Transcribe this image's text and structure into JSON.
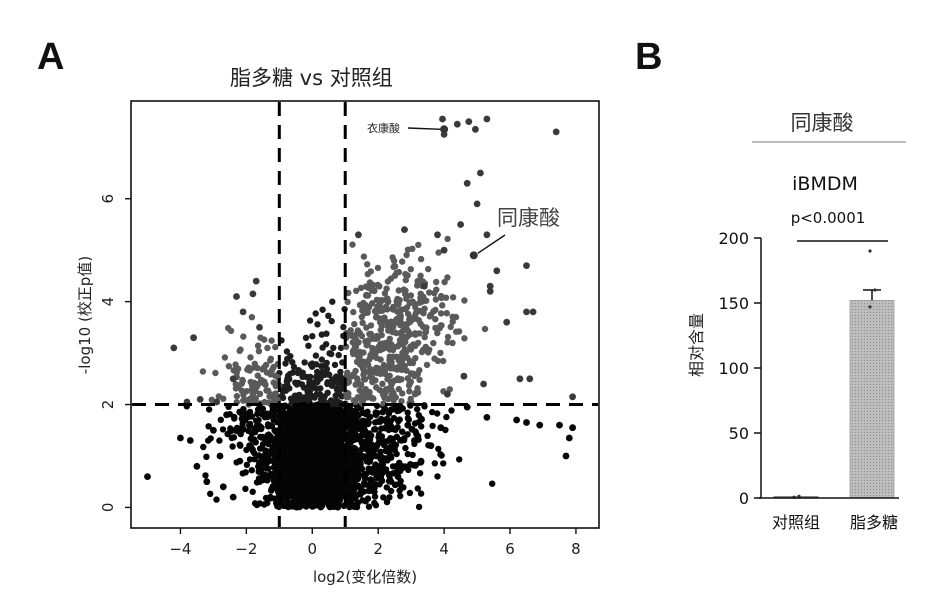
{
  "panels": {
    "a": {
      "letter": "A",
      "title": "脂多糖 vs 对照组",
      "annotation_small": "衣康酸",
      "annotation_big": "同康酸"
    },
    "b": {
      "letter": "B",
      "compound": "同康酸",
      "cell_line": "iBMDM",
      "pvalue": "p<0.0001"
    }
  },
  "chart_data": [
    {
      "type": "scatter",
      "title": "脂多糖 vs 对照组",
      "xlabel": "log2(变化倍数)",
      "ylabel": "-log10 (校正p值)",
      "xlim": [
        -5.5,
        8.7
      ],
      "ylim": [
        -0.4,
        7.9
      ],
      "xticks": [
        -4,
        -2,
        0,
        2,
        4,
        6,
        8
      ],
      "yticks": [
        0,
        2,
        4,
        6
      ],
      "thresholds": {
        "x": [
          -1,
          1
        ],
        "y": 2
      },
      "grid": false,
      "highlighted": [
        {
          "label": "衣康酸",
          "x": 4.0,
          "y": 7.35
        },
        {
          "label": "同康酸",
          "x": 4.9,
          "y": 4.9
        }
      ],
      "points": [
        [
          3.95,
          7.55
        ],
        [
          4.4,
          7.45
        ],
        [
          4.75,
          7.5
        ],
        [
          5.3,
          7.55
        ],
        [
          7.4,
          7.3
        ],
        [
          4.95,
          7.35
        ],
        [
          4.0,
          7.25
        ],
        [
          5.1,
          6.5
        ],
        [
          4.7,
          6.3
        ],
        [
          5.0,
          5.9
        ],
        [
          2.8,
          5.4
        ],
        [
          4.5,
          5.5
        ],
        [
          3.8,
          5.3
        ],
        [
          5.3,
          5.3
        ],
        [
          1.4,
          5.3
        ],
        [
          4.0,
          5.0
        ],
        [
          4.9,
          4.9
        ],
        [
          6.5,
          4.7
        ],
        [
          5.6,
          4.6
        ],
        [
          3.4,
          4.3
        ],
        [
          5.4,
          4.2
        ],
        [
          6.5,
          3.8
        ],
        [
          6.7,
          3.8
        ],
        [
          5.4,
          4.3
        ],
        [
          5.9,
          3.6
        ],
        [
          6.3,
          2.5
        ],
        [
          6.6,
          2.5
        ],
        [
          7.9,
          2.15
        ],
        [
          5.2,
          2.4
        ],
        [
          4.6,
          2.55
        ],
        [
          4.1,
          2.2
        ],
        [
          4.7,
          1.95
        ],
        [
          5.3,
          1.75
        ],
        [
          6.2,
          1.7
        ],
        [
          6.9,
          1.6
        ],
        [
          7.5,
          1.6
        ],
        [
          7.9,
          1.55
        ],
        [
          7.8,
          1.35
        ],
        [
          7.7,
          1.0
        ],
        [
          6.5,
          1.65
        ],
        [
          -5.0,
          0.6
        ],
        [
          -4.2,
          3.1
        ],
        [
          -3.6,
          3.3
        ],
        [
          -2.9,
          2.05
        ],
        [
          -2.4,
          2.5
        ],
        [
          -2.8,
          1.0
        ],
        [
          -3.8,
          2.05
        ],
        [
          -1.7,
          4.4
        ],
        [
          -2.3,
          4.1
        ],
        [
          -1.8,
          4.15
        ],
        [
          -2.1,
          3.8
        ],
        [
          -1.6,
          3.5
        ],
        [
          -3.4,
          2.1
        ],
        [
          -3.0,
          1.5
        ],
        [
          -3.7,
          1.3
        ],
        [
          -4.0,
          1.35
        ],
        [
          -2.6,
          1.8
        ],
        [
          -2.2,
          0.9
        ],
        [
          -1.9,
          1.2
        ],
        [
          -3.2,
          0.5
        ],
        [
          -2.7,
          0.4
        ],
        [
          -3.5,
          0.8
        ],
        [
          -2.4,
          0.2
        ],
        [
          3.1,
          1.3
        ],
        [
          3.3,
          0.9
        ],
        [
          2.6,
          0.6
        ],
        [
          2.9,
          1.6
        ],
        [
          3.6,
          1.2
        ],
        [
          2.4,
          1.9
        ],
        [
          3.9,
          1.55
        ]
      ],
      "cloud": [
        {
          "cx": 0.0,
          "cy": 0.95,
          "sx": 0.65,
          "sy": 0.55,
          "n": 900
        },
        {
          "cx": 0.55,
          "cy": 1.2,
          "sx": 0.75,
          "sy": 0.6,
          "n": 420
        },
        {
          "cx": -0.55,
          "cy": 1.15,
          "sx": 0.65,
          "sy": 0.6,
          "n": 340
        },
        {
          "cx": 0.3,
          "cy": 0.55,
          "sx": 1.0,
          "sy": 0.4,
          "n": 300
        },
        {
          "cx": 2.1,
          "cy": 2.7,
          "sx": 0.8,
          "sy": 0.7,
          "n": 300
        },
        {
          "cx": 2.4,
          "cy": 3.7,
          "sx": 0.9,
          "sy": 0.55,
          "n": 140
        },
        {
          "cx": 3.2,
          "cy": 4.05,
          "sx": 0.6,
          "sy": 0.5,
          "n": 70
        },
        {
          "cx": -1.5,
          "cy": 2.6,
          "sx": 0.55,
          "sy": 0.45,
          "n": 90
        },
        {
          "cx": -1.9,
          "cy": 1.7,
          "sx": 0.6,
          "sy": 0.45,
          "n": 110
        },
        {
          "cx": 2.1,
          "cy": 1.2,
          "sx": 0.9,
          "sy": 0.55,
          "n": 220
        },
        {
          "cx": 0.3,
          "cy": 2.3,
          "sx": 0.45,
          "sy": 0.5,
          "n": 90
        }
      ]
    },
    {
      "type": "bar",
      "title": "iBMDM",
      "ylabel": "相对含量",
      "categories": [
        "对照组",
        "脂多糖"
      ],
      "values": [
        1,
        152
      ],
      "errors": [
        0.5,
        8
      ],
      "ylim": [
        0,
        200
      ],
      "yticks": [
        0,
        50,
        100,
        150,
        200
      ],
      "annotation": "p<0.0001",
      "replicate_points": [
        [
          1,
          0.6
        ],
        [
          1,
          1.3
        ],
        [
          152,
          147
        ],
        [
          152,
          160
        ],
        [
          152,
          190
        ]
      ]
    }
  ]
}
